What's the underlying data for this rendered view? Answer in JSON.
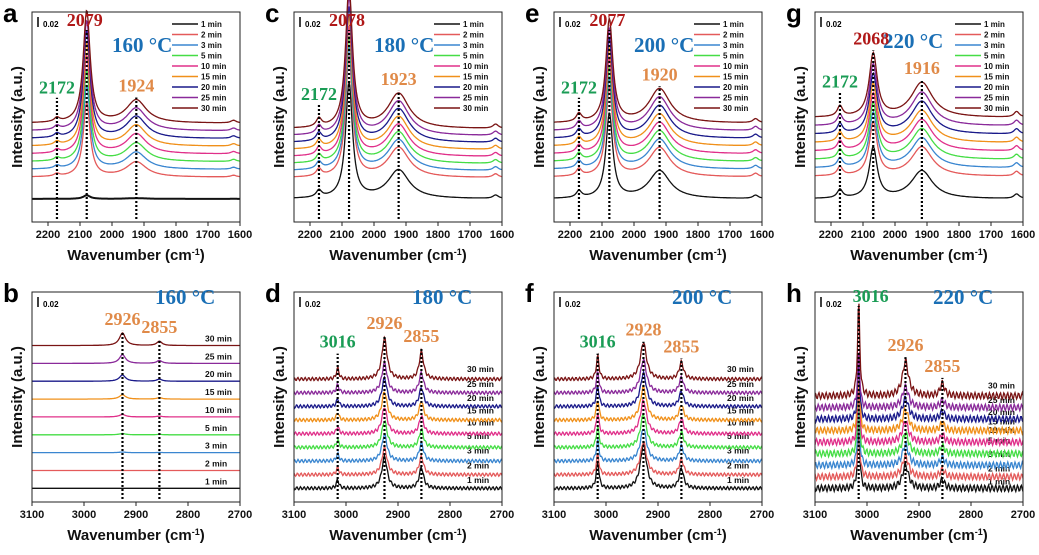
{
  "chart_data": [
    {
      "letter": "a",
      "type": "line",
      "temperature": "160 °C",
      "scale_bar": "0.02",
      "xlabel": "Wavenumber (cm-1)",
      "ylabel": "Intensity (a.u.)",
      "xlim": [
        2250,
        1600
      ],
      "xticks": [
        2200,
        2100,
        2000,
        1900,
        1800,
        1700,
        1600
      ],
      "ylim": [
        -0.03,
        0.27
      ],
      "legend": "top-right",
      "peaks": [
        {
          "pos": 2172,
          "label": "2172",
          "color": "#1a9c55"
        },
        {
          "pos": 2079,
          "label": "2079",
          "color": "#b01818"
        },
        {
          "pos": 1924,
          "label": "1924",
          "color": "#e08a48"
        }
      ],
      "bands": [
        [
          2172,
          10,
          0.006
        ],
        [
          2079,
          13,
          0.17
        ],
        [
          1924,
          38,
          0.035
        ],
        [
          1620,
          10,
          0.004
        ]
      ],
      "offset_step": 0.011,
      "series": [
        {
          "name": "1 min",
          "scale": 0.03
        },
        {
          "name": "2 min",
          "scale": 0.62
        },
        {
          "name": "3 min",
          "scale": 0.7
        },
        {
          "name": "5 min",
          "scale": 0.76
        },
        {
          "name": "10 min",
          "scale": 0.82
        },
        {
          "name": "15 min",
          "scale": 0.86
        },
        {
          "name": "20 min",
          "scale": 0.9
        },
        {
          "name": "25 min",
          "scale": 0.92
        },
        {
          "name": "30 min",
          "scale": 0.94
        }
      ]
    },
    {
      "letter": "c",
      "type": "line",
      "temperature": "180 °C",
      "scale_bar": "0.02",
      "xlabel": "Wavenumber (cm-1)",
      "ylabel": "Intensity (a.u.)",
      "xlim": [
        2250,
        1600
      ],
      "xticks": [
        2200,
        2100,
        2000,
        1900,
        1800,
        1700,
        1600
      ],
      "ylim": [
        -0.03,
        0.27
      ],
      "legend": "top-right",
      "peaks": [
        {
          "pos": 2172,
          "label": "2172",
          "color": "#1a9c55"
        },
        {
          "pos": 2078,
          "label": "2078",
          "color": "#b01818"
        },
        {
          "pos": 1923,
          "label": "1923",
          "color": "#e08a48"
        }
      ],
      "bands": [
        [
          2172,
          10,
          0.012
        ],
        [
          2078,
          13,
          0.2
        ],
        [
          1923,
          40,
          0.05
        ],
        [
          1620,
          10,
          0.006
        ]
      ],
      "offset_step": 0.01,
      "series": [
        {
          "name": "1 min",
          "scale": 0.82
        },
        {
          "name": "2 min",
          "scale": 0.86
        },
        {
          "name": "3 min",
          "scale": 0.88
        },
        {
          "name": "5 min",
          "scale": 0.9
        },
        {
          "name": "10 min",
          "scale": 0.92
        },
        {
          "name": "15 min",
          "scale": 0.94
        },
        {
          "name": "20 min",
          "scale": 0.96
        },
        {
          "name": "25 min",
          "scale": 0.98
        },
        {
          "name": "30 min",
          "scale": 1.0
        }
      ]
    },
    {
      "letter": "e",
      "type": "line",
      "temperature": "200 °C",
      "scale_bar": "0.02",
      "xlabel": "Wavenumber (cm-1)",
      "ylabel": "Intensity (a.u.)",
      "xlim": [
        2250,
        1600
      ],
      "xticks": [
        2200,
        2100,
        2000,
        1900,
        1800,
        1700,
        1600
      ],
      "ylim": [
        -0.03,
        0.27
      ],
      "legend": "top-right",
      "peaks": [
        {
          "pos": 2172,
          "label": "2172",
          "color": "#1a9c55"
        },
        {
          "pos": 2077,
          "label": "2077",
          "color": "#b01818"
        },
        {
          "pos": 1920,
          "label": "1920",
          "color": "#e08a48"
        }
      ],
      "bands": [
        [
          2172,
          10,
          0.012
        ],
        [
          2077,
          13,
          0.15
        ],
        [
          1920,
          40,
          0.05
        ],
        [
          1620,
          10,
          0.006
        ]
      ],
      "offset_step": 0.011,
      "series": [
        {
          "name": "1 min",
          "scale": 0.8
        },
        {
          "name": "2 min",
          "scale": 0.84
        },
        {
          "name": "3 min",
          "scale": 0.86
        },
        {
          "name": "5 min",
          "scale": 0.88
        },
        {
          "name": "10 min",
          "scale": 0.9
        },
        {
          "name": "15 min",
          "scale": 0.92
        },
        {
          "name": "20 min",
          "scale": 0.94
        },
        {
          "name": "25 min",
          "scale": 0.96
        },
        {
          "name": "30 min",
          "scale": 0.98
        }
      ]
    },
    {
      "letter": "g",
      "type": "line",
      "temperature": "220 °C",
      "scale_bar": "0.02",
      "xlabel": "Wavenumber (cm-1)",
      "ylabel": "Intensity (a.u.)",
      "xlim": [
        2250,
        1600
      ],
      "xticks": [
        2200,
        2100,
        2000,
        1900,
        1800,
        1700,
        1600
      ],
      "ylim": [
        -0.03,
        0.27
      ],
      "legend": "top-right",
      "peaks": [
        {
          "pos": 2172,
          "label": "2172",
          "color": "#1a9c55"
        },
        {
          "pos": 2068,
          "label": "2068",
          "color": "#b01818"
        },
        {
          "pos": 1916,
          "label": "1916",
          "color": "#e08a48"
        }
      ],
      "bands": [
        [
          2172,
          10,
          0.015
        ],
        [
          2068,
          15,
          0.09
        ],
        [
          1916,
          40,
          0.05
        ],
        [
          1620,
          10,
          0.008
        ]
      ],
      "offset_step": 0.012,
      "series": [
        {
          "name": "1 min",
          "scale": 0.8
        },
        {
          "name": "2 min",
          "scale": 0.84
        },
        {
          "name": "3 min",
          "scale": 0.86
        },
        {
          "name": "5 min",
          "scale": 0.88
        },
        {
          "name": "10 min",
          "scale": 0.9
        },
        {
          "name": "15 min",
          "scale": 0.92
        },
        {
          "name": "20 min",
          "scale": 0.94
        },
        {
          "name": "25 min",
          "scale": 0.96
        },
        {
          "name": "30 min",
          "scale": 1.0
        }
      ]
    },
    {
      "letter": "b",
      "type": "line",
      "temperature": "160 °C",
      "scale_bar": "0.02",
      "xlabel": "Wavenumber (cm-1)",
      "ylabel": "Intensity (a.u.)",
      "xlim": [
        3100,
        2700
      ],
      "xticks": [
        3100,
        3000,
        2900,
        2800,
        2700
      ],
      "ylim": [
        -0.01,
        0.19
      ],
      "legend": "inline",
      "peaks": [
        {
          "pos": 2926,
          "label": "2926",
          "color": "#e08a48"
        },
        {
          "pos": 2855,
          "label": "2855",
          "color": "#e08a48"
        }
      ],
      "bands": [
        [
          2926,
          7,
          0.012
        ],
        [
          2855,
          6,
          0.004
        ]
      ],
      "offset_step": 0.017,
      "series": [
        {
          "name": "1 min",
          "scale": 0
        },
        {
          "name": "2 min",
          "scale": 0
        },
        {
          "name": "3 min",
          "scale": 0.05
        },
        {
          "name": "5 min",
          "scale": 0.1
        },
        {
          "name": "10 min",
          "scale": 0.2
        },
        {
          "name": "15 min",
          "scale": 0.35
        },
        {
          "name": "20 min",
          "scale": 0.5
        },
        {
          "name": "25 min",
          "scale": 0.7
        },
        {
          "name": "30 min",
          "scale": 1.0
        }
      ]
    },
    {
      "letter": "d",
      "type": "line",
      "temperature": "180 °C",
      "scale_bar": "0.02",
      "xlabel": "Wavenumber (cm-1)",
      "ylabel": "Intensity (a.u.)",
      "xlim": [
        3100,
        2700
      ],
      "xticks": [
        3100,
        3000,
        2900,
        2800,
        2700
      ],
      "ylim": [
        -0.01,
        0.19
      ],
      "legend": "inline",
      "peaks": [
        {
          "pos": 3016,
          "label": "3016",
          "color": "#1a9c55"
        },
        {
          "pos": 2926,
          "label": "2926",
          "color": "#e08a48"
        },
        {
          "pos": 2855,
          "label": "2855",
          "color": "#e08a48"
        }
      ],
      "bands": [
        [
          3016,
          3,
          0.008
        ],
        [
          2926,
          6,
          0.03
        ],
        [
          2855,
          5,
          0.02
        ]
      ],
      "offset_step": 0.013,
      "series": [
        {
          "name": "1 min",
          "scale": 1.0
        },
        {
          "name": "2 min",
          "scale": 0.85
        },
        {
          "name": "3 min",
          "scale": 0.85
        },
        {
          "name": "5 min",
          "scale": 0.85
        },
        {
          "name": "10 min",
          "scale": 0.85
        },
        {
          "name": "15 min",
          "scale": 0.9
        },
        {
          "name": "20 min",
          "scale": 0.9
        },
        {
          "name": "25 min",
          "scale": 0.95
        },
        {
          "name": "30 min",
          "scale": 1.3
        }
      ]
    },
    {
      "letter": "f",
      "type": "line",
      "temperature": "200 °C",
      "scale_bar": "0.02",
      "xlabel": "Wavenumber (cm-1)",
      "ylabel": "Intensity (a.u.)",
      "xlim": [
        3100,
        2700
      ],
      "xticks": [
        3100,
        3000,
        2900,
        2800,
        2700
      ],
      "ylim": [
        -0.01,
        0.19
      ],
      "legend": "inline",
      "peaks": [
        {
          "pos": 3016,
          "label": "3016",
          "color": "#1a9c55"
        },
        {
          "pos": 2928,
          "label": "2928",
          "color": "#e08a48"
        },
        {
          "pos": 2855,
          "label": "2855",
          "color": "#e08a48"
        }
      ],
      "bands": [
        [
          3016,
          3,
          0.022
        ],
        [
          2928,
          7,
          0.035
        ],
        [
          2855,
          5,
          0.016
        ]
      ],
      "offset_step": 0.013,
      "series": [
        {
          "name": "1 min",
          "scale": 1.2
        },
        {
          "name": "2 min",
          "scale": 0.9
        },
        {
          "name": "3 min",
          "scale": 0.9
        },
        {
          "name": "5 min",
          "scale": 0.9
        },
        {
          "name": "10 min",
          "scale": 0.9
        },
        {
          "name": "15 min",
          "scale": 0.9
        },
        {
          "name": "20 min",
          "scale": 0.9
        },
        {
          "name": "25 min",
          "scale": 0.9
        },
        {
          "name": "30 min",
          "scale": 1.0
        }
      ]
    },
    {
      "letter": "h",
      "type": "line",
      "temperature": "220 °C",
      "scale_bar": "0.02",
      "xlabel": "Wavenumber (cm-1)",
      "ylabel": "Intensity (a.u.)",
      "xlim": [
        3100,
        2700
      ],
      "xticks": [
        3100,
        3000,
        2900,
        2800,
        2700
      ],
      "ylim": [
        -0.01,
        0.19
      ],
      "legend": "inline",
      "peaks": [
        {
          "pos": 3016,
          "label": "3016",
          "color": "#1a9c55"
        },
        {
          "pos": 2926,
          "label": "2926",
          "color": "#e08a48"
        },
        {
          "pos": 2855,
          "label": "2855",
          "color": "#e08a48"
        }
      ],
      "bands": [
        [
          3016,
          2.5,
          0.06
        ],
        [
          2926,
          7,
          0.022
        ],
        [
          2855,
          5,
          0.008
        ]
      ],
      "offset_step": 0.011,
      "series": [
        {
          "name": "1 min",
          "scale": 1.0
        },
        {
          "name": "2 min",
          "scale": 0.9
        },
        {
          "name": "3 min",
          "scale": 0.9
        },
        {
          "name": "5 min",
          "scale": 0.9
        },
        {
          "name": "10 min",
          "scale": 0.9
        },
        {
          "name": "15 min",
          "scale": 0.9
        },
        {
          "name": "20 min",
          "scale": 0.9
        },
        {
          "name": "25 min",
          "scale": 0.9
        },
        {
          "name": "30 min",
          "scale": 1.5
        }
      ]
    }
  ],
  "series_colors": [
    "#111111",
    "#e45a5a",
    "#3a86d0",
    "#45dd45",
    "#e0308a",
    "#f0901a",
    "#1a1a8a",
    "#8a2a9a",
    "#7a1414"
  ],
  "temperature_color": "#1a6fb5"
}
